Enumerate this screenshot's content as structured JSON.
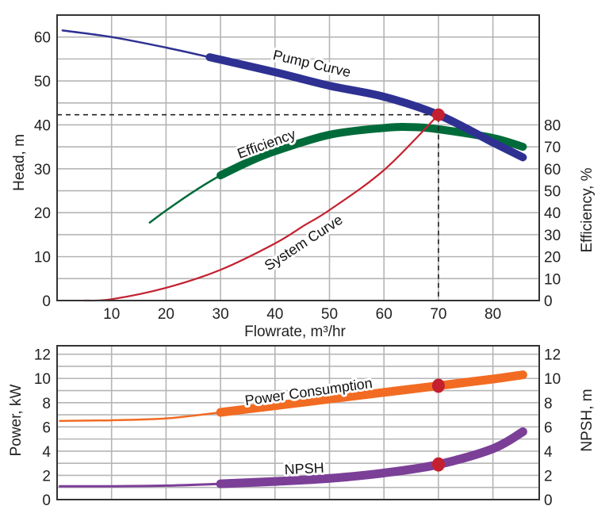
{
  "colors": {
    "pump": "#2e3192",
    "efficiency": "#006b3a",
    "system": "#c4202f",
    "power": "#f26b22",
    "npsh": "#7b3f98",
    "operating_point": "#c4202f",
    "grid": "#b5b5b5"
  },
  "chart_data": [
    {
      "type": "line",
      "xlabel": "Flowrate, m³/hr",
      "ylabel": "Head, m",
      "y2label": "Efficiency, %",
      "xlim": [
        0,
        88.5
      ],
      "ylim": [
        0,
        65
      ],
      "y2lim": [
        0,
        130
      ],
      "x_ticks": [
        10,
        20,
        30,
        40,
        50,
        60,
        70,
        80
      ],
      "y_ticks": [
        0,
        10,
        20,
        30,
        40,
        50,
        60
      ],
      "y2_ticks": [
        0,
        10,
        20,
        30,
        40,
        50,
        60,
        70,
        80
      ],
      "grid": true,
      "series": [
        {
          "name": "Pump Curve",
          "axis": "left",
          "thick_from": 28,
          "x": [
            1,
            10,
            20,
            28,
            40,
            50,
            60,
            70,
            80,
            85.5
          ],
          "y": [
            61.5,
            60,
            57.6,
            55.4,
            52,
            48.9,
            46.4,
            42.3,
            36,
            32.6
          ]
        },
        {
          "name": "Efficiency",
          "axis": "right",
          "thick_from": 30,
          "x": [
            17,
            20,
            25,
            30,
            35,
            40,
            50,
            60,
            65,
            70,
            80,
            85.5
          ],
          "y": [
            35.5,
            41,
            49.5,
            57,
            63,
            68,
            75.5,
            78.6,
            79,
            78,
            74,
            70
          ]
        },
        {
          "name": "System Curve",
          "axis": "left",
          "thick_from": null,
          "x": [
            5,
            10,
            20,
            30,
            40,
            45.5,
            50,
            60,
            70
          ],
          "y": [
            0,
            0.3,
            2.9,
            7,
            13,
            17.2,
            20.6,
            29.7,
            42.3
          ]
        }
      ],
      "operating_point": {
        "x": 70,
        "y": 42.3
      }
    },
    {
      "type": "line",
      "ylabel": "Power, kW",
      "y2label": "NPSH, m",
      "xlim": [
        0,
        88.5
      ],
      "ylim": [
        0,
        12.7
      ],
      "y2lim": [
        0,
        12.7
      ],
      "y_ticks": [
        0,
        2,
        4,
        6,
        8,
        10,
        12
      ],
      "y2_ticks": [
        0,
        2,
        4,
        6,
        8,
        10,
        12
      ],
      "grid": true,
      "series": [
        {
          "name": "Power Consumption",
          "axis": "left",
          "thick_from": 30,
          "x": [
            0.5,
            10,
            20,
            30,
            40,
            50,
            60,
            70,
            80,
            85.5
          ],
          "y": [
            6.5,
            6.55,
            6.7,
            7.2,
            7.75,
            8.3,
            8.85,
            9.4,
            9.95,
            10.3
          ]
        },
        {
          "name": "NPSH",
          "axis": "right",
          "thick_from": 30,
          "x": [
            0.5,
            10,
            20,
            30,
            40,
            50,
            60,
            70,
            80,
            85.5
          ],
          "y": [
            1.1,
            1.1,
            1.15,
            1.3,
            1.5,
            1.75,
            2.2,
            2.9,
            4.2,
            5.6
          ]
        }
      ],
      "markers": [
        {
          "series": "Power Consumption",
          "x": 70,
          "y": 9.4
        },
        {
          "series": "NPSH",
          "x": 70,
          "y": 2.9
        }
      ]
    }
  ]
}
